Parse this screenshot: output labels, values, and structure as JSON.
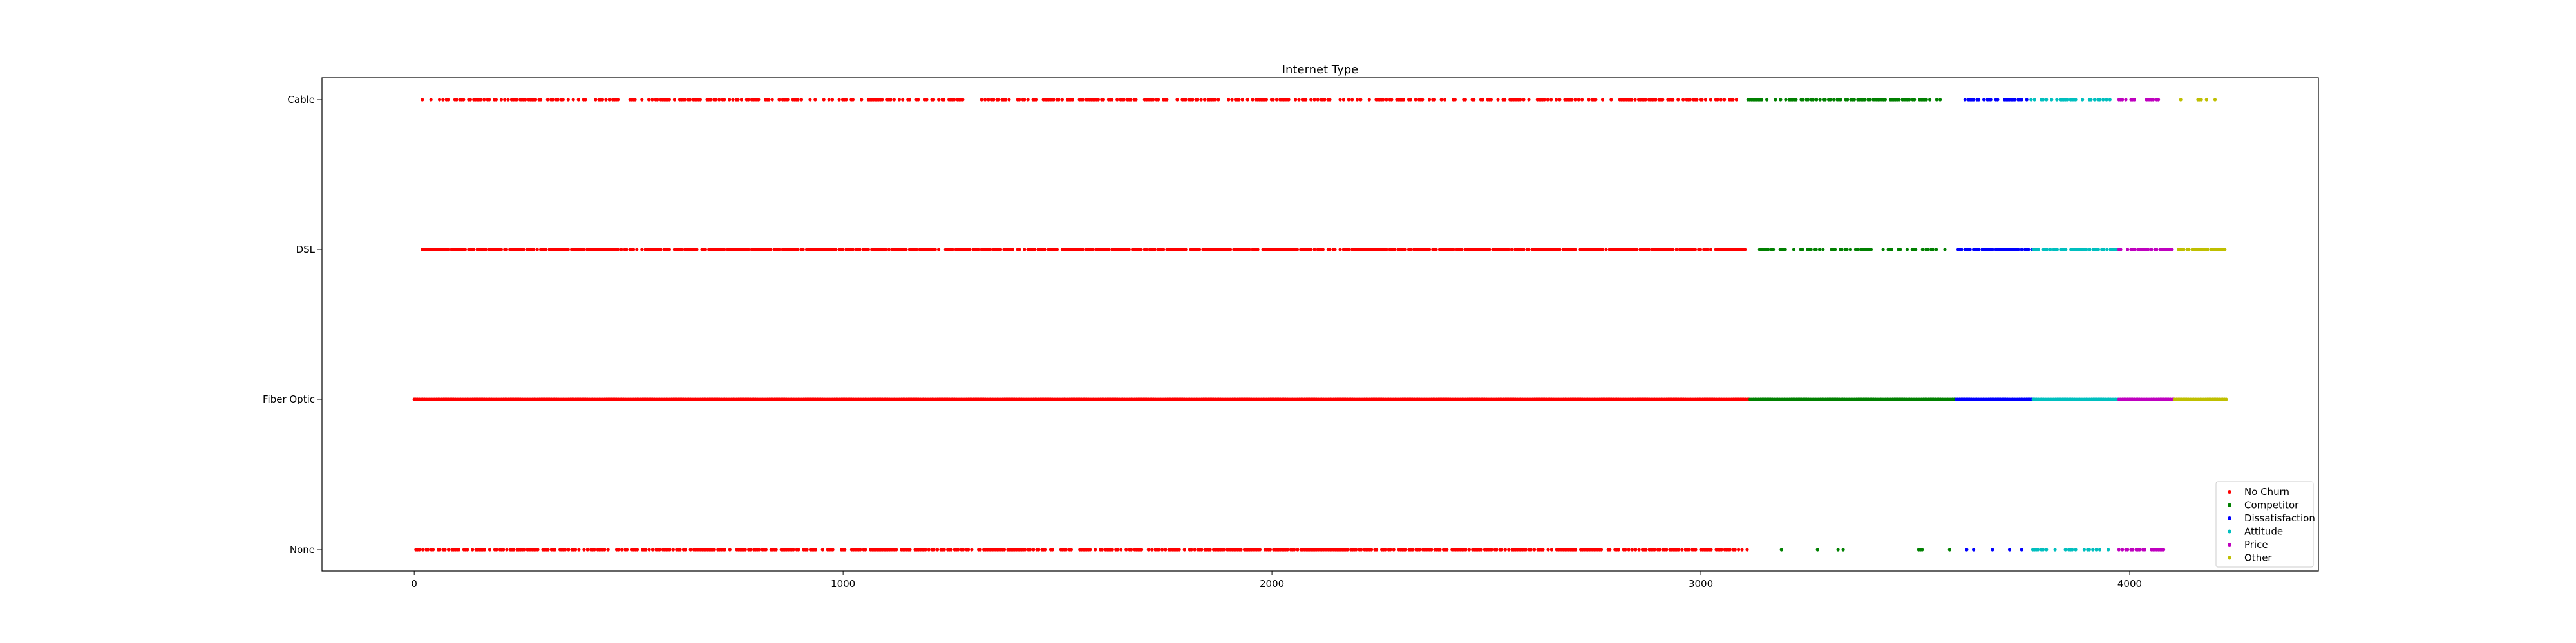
{
  "chart_data": {
    "type": "scatter",
    "title": "Internet Type",
    "xlabel": "",
    "ylabel": "",
    "xlim": [
      -215,
      4440
    ],
    "x_ticks": [
      0,
      1000,
      2000,
      3000,
      4000
    ],
    "categories": [
      "None",
      "Fiber Optic",
      "DSL",
      "Cable"
    ],
    "grid": false,
    "legend_position": "lower-right",
    "series": [
      {
        "name": "No Churn",
        "color": "#ff0000",
        "segments": [
          {
            "category": "Cable",
            "x_start": 15,
            "x_end": 3105,
            "density": 0.55
          },
          {
            "category": "DSL",
            "x_start": 15,
            "x_end": 3110,
            "density": 0.85
          },
          {
            "category": "Fiber Optic",
            "x_start": 0,
            "x_end": 3115,
            "density": 1.0
          },
          {
            "category": "None",
            "x_start": 0,
            "x_end": 3110,
            "density": 0.75
          }
        ]
      },
      {
        "name": "Competitor",
        "color": "#008000",
        "segments": [
          {
            "category": "Cable",
            "x_start": 3110,
            "x_end": 3570,
            "density": 0.6
          },
          {
            "category": "DSL",
            "x_start": 3125,
            "x_end": 3580,
            "density": 0.5
          },
          {
            "category": "Fiber Optic",
            "x_start": 3115,
            "x_end": 3595,
            "density": 1.0
          },
          {
            "category": "None",
            "x_start": 3140,
            "x_end": 3580,
            "density": 0.06
          }
        ]
      },
      {
        "name": "Dissatisfaction",
        "color": "#0000ff",
        "segments": [
          {
            "category": "Cable",
            "x_start": 3600,
            "x_end": 3760,
            "density": 0.6
          },
          {
            "category": "DSL",
            "x_start": 3600,
            "x_end": 3775,
            "density": 0.8
          },
          {
            "category": "Fiber Optic",
            "x_start": 3595,
            "x_end": 3775,
            "density": 1.0
          },
          {
            "category": "None",
            "x_start": 3620,
            "x_end": 3750,
            "density": 0.15
          }
        ]
      },
      {
        "name": "Attitude",
        "color": "#00bfbf",
        "segments": [
          {
            "category": "Cable",
            "x_start": 3770,
            "x_end": 3955,
            "density": 0.5
          },
          {
            "category": "DSL",
            "x_start": 3775,
            "x_end": 3975,
            "density": 0.7
          },
          {
            "category": "Fiber Optic",
            "x_start": 3775,
            "x_end": 3975,
            "density": 1.0
          },
          {
            "category": "None",
            "x_start": 3770,
            "x_end": 3960,
            "density": 0.4
          }
        ]
      },
      {
        "name": "Price",
        "color": "#bf00bf",
        "segments": [
          {
            "category": "Cable",
            "x_start": 3975,
            "x_end": 4070,
            "density": 0.5
          },
          {
            "category": "DSL",
            "x_start": 3975,
            "x_end": 4100,
            "density": 0.7
          },
          {
            "category": "Fiber Optic",
            "x_start": 3975,
            "x_end": 4105,
            "density": 1.0
          },
          {
            "category": "None",
            "x_start": 3975,
            "x_end": 4080,
            "density": 0.6
          }
        ]
      },
      {
        "name": "Other",
        "color": "#bfbf00",
        "segments": [
          {
            "category": "Cable",
            "x_start": 4115,
            "x_end": 4205,
            "density": 0.5
          },
          {
            "category": "DSL",
            "x_start": 4110,
            "x_end": 4225,
            "density": 0.9
          },
          {
            "category": "Fiber Optic",
            "x_start": 4105,
            "x_end": 4225,
            "density": 1.0
          }
        ]
      }
    ]
  }
}
